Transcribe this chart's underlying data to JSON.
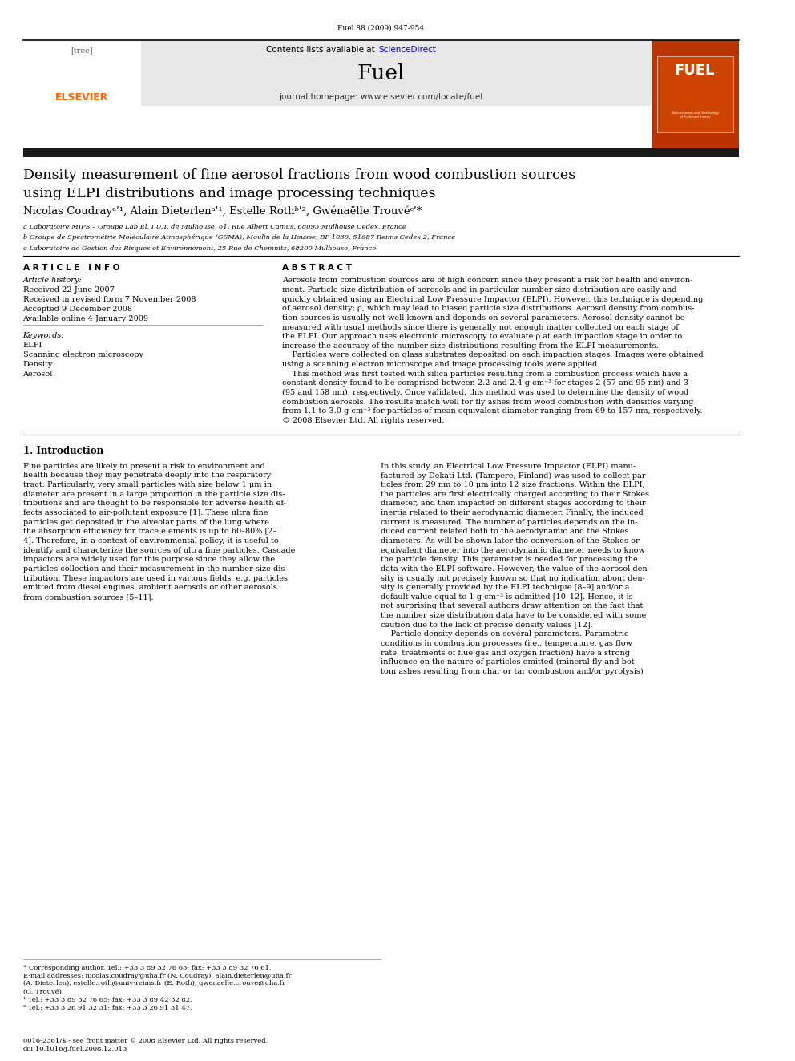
{
  "page_width": 9.92,
  "page_height": 13.23,
  "dpi": 100,
  "background": "#ffffff",
  "journal_ref": "Fuel 88 (2009) 947-954",
  "header_bg": "#e8e8e8",
  "header_contents": "Contents lists available at ScienceDirect",
  "header_sciencedirect_color": "#0000cc",
  "journal_name": "Fuel",
  "journal_homepage": "journal homepage: www.elsevier.com/locate/fuel",
  "elsevier_color": "#ff6600",
  "dark_bar_color": "#1a1a1a",
  "article_title_line1": "Density measurement of fine aerosol fractions from wood combustion sources",
  "article_title_line2": "using ELPI distributions and image processing techniques",
  "affil_a": "a Laboratoire MIPS – Groupe Lab.El, I.U.T. de Mulhouse, 61, Rue Albert Camus, 68093 Mulhouse Cedex, France",
  "affil_b": "b Groupe de Spectrométrie Moléculaire Atmosphérique (GSMA), Moulin de la Housse, BP 1039, 51687 Reims Cedex 2, France",
  "affil_c": "c Laboratoire de Gestion des Risques et Environnement, 25 Rue de Chemnitz, 68200 Mulhouse, France",
  "article_info_header": "A R T I C L E   I N F O",
  "abstract_header": "A B S T R A C T",
  "article_history_label": "Article history:",
  "received": "Received 22 June 2007",
  "received_revised": "Received in revised form 7 November 2008",
  "accepted": "Accepted 9 December 2008",
  "available": "Available online 4 January 2009",
  "keywords_label": "Keywords:",
  "keywords": [
    "ELPI",
    "Scanning electron microscopy",
    "Density",
    "Aerosol"
  ],
  "abstract_lines": [
    "Aerosols from combustion sources are of high concern since they present a risk for health and environ-",
    "ment. Particle size distribution of aerosols and in particular number size distribution are easily and",
    "quickly obtained using an Electrical Low Pressure Impactor (ELPI). However, this technique is depending",
    "of aerosol density; ρ, which may lead to biased particle size distributions. Aerosol density from combus-",
    "tion sources is usually not well known and depends on several parameters. Aerosol density cannot be",
    "measured with usual methods since there is generally not enough matter collected on each stage of",
    "the ELPI. Our approach uses electronic microscopy to evaluate ρ at each impaction stage in order to",
    "increase the accuracy of the number size distributions resulting from the ELPI measurements.",
    "    Particles were collected on glass substrates deposited on each impaction stages. Images were obtained",
    "using a scanning electron microscope and image processing tools were applied.",
    "    This method was first tested with silica particles resulting from a combustion process which have a",
    "constant density found to be comprised between 2.2 and 2.4 g cm⁻³ for stages 2 (57 and 95 nm) and 3",
    "(95 and 158 nm), respectively. Once validated, this method was used to determine the density of wood",
    "combustion aerosols. The results match well for fly ashes from wood combustion with densities varying",
    "from 1.1 to 3.0 g cm⁻³ for particles of mean equivalent diameter ranging from 69 to 157 nm, respectively.",
    "© 2008 Elsevier Ltd. All rights reserved."
  ],
  "section1_title": "1. Introduction",
  "intro1_lines": [
    "Fine particles are likely to present a risk to environment and",
    "health because they may penetrate deeply into the respiratory",
    "tract. Particularly, very small particles with size below 1 μm in",
    "diameter are present in a large proportion in the particle size dis-",
    "tributions and are thought to be responsible for adverse health ef-",
    "fects associated to air-pollutant exposure [1]. These ultra fine",
    "particles get deposited in the alveolar parts of the lung where",
    "the absorption efficiency for trace elements is up to 60–80% [2–",
    "4]. Therefore, in a context of environmental policy, it is useful to",
    "identify and characterize the sources of ultra fine particles. Cascade",
    "impactors are widely used for this purpose since they allow the",
    "particles collection and their measurement in the number size dis-",
    "tribution. These impactors are used in various fields, e.g. particles",
    "emitted from diesel engines, ambient aerosols or other aerosols",
    "from combustion sources [5–11]."
  ],
  "intro2_lines": [
    "In this study, an Electrical Low Pressure Impactor (ELPI) manu-",
    "factured by Dekati Ltd. (Tampere, Finland) was used to collect par-",
    "ticles from 29 nm to 10 μm into 12 size fractions. Within the ELPI,",
    "the particles are first electrically charged according to their Stokes",
    "diameter, and then impacted on different stages according to their",
    "inertia related to their aerodynamic diameter. Finally, the induced",
    "current is measured. The number of particles depends on the in-",
    "duced current related both to the aerodynamic and the Stokes",
    "diameters. As will be shown later the conversion of the Stokes or",
    "equivalent diameter into the aerodynamic diameter needs to know",
    "the particle density. This parameter is needed for processing the",
    "data with the ELPI software. However, the value of the aerosol den-",
    "sity is usually not precisely known so that no indication about den-",
    "sity is generally provided by the ELPI technique [8–9] and/or a",
    "default value equal to 1 g cm⁻³ is admitted [10–12]. Hence, it is",
    "not surprising that several authors draw attention on the fact that",
    "the number size distribution data have to be considered with some",
    "caution due to the lack of precise density values [12].",
    "    Particle density depends on several parameters. Parametric",
    "conditions in combustion processes (i.e., temperature, gas flow",
    "rate, treatments of flue gas and oxygen fraction) have a strong",
    "influence on the nature of particles emitted (mineral fly and bot-",
    "tom ashes resulting from char or tar combustion and/or pyrolysis)"
  ],
  "footnote_lines": [
    "* Corresponding author. Tel.: +33 3 89 32 76 63; fax: +33 3 89 32 76 61.",
    "E-mail addresses: nicolas.coudray@uha.fr (N. Coudray), alain.dieterlen@uha.fr",
    "(A. Dieterlen), estelle.roth@univ-reims.fr (E. Roth), gwenaelle.crouve@uha.fr",
    "(G. Trouvé).",
    "¹ Tel.: +33 3 89 32 76 65; fax: +33 3 89 42 32 82.",
    "² Tel.: +33 3 26 91 32 31; fax: +33 3 26 91 31 47."
  ],
  "bottom_ref1": "0016-2361/$ - see front matter © 2008 Elsevier Ltd. All rights reserved.",
  "bottom_ref2": "doi:10.1016/j.fuel.2008.12.013"
}
